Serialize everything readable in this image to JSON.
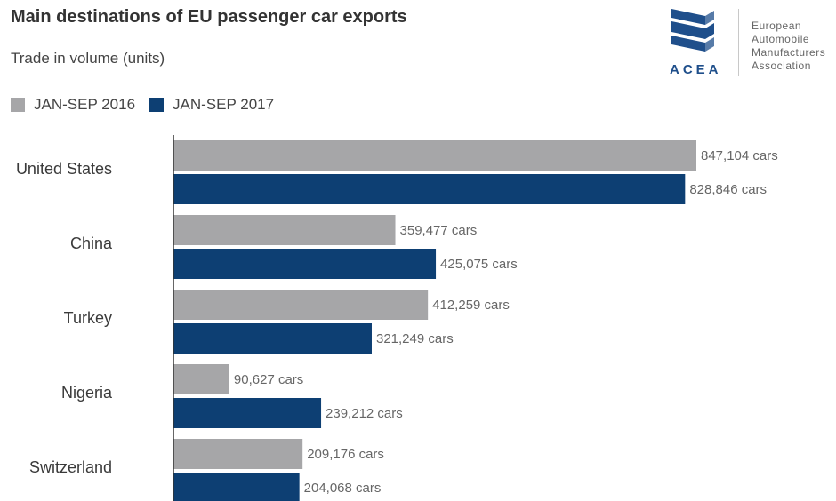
{
  "header": {
    "title": "Main destinations of EU passenger car exports",
    "subtitle": "Trade in volume (units)"
  },
  "logo": {
    "abbr": "ACEA",
    "lines": [
      "European",
      "Automobile",
      "Manufacturers",
      "Association"
    ]
  },
  "colors": {
    "series_2016": "#a6a6a8",
    "series_2017": "#0d3f73",
    "logo_blue": "#1f4f8b",
    "axis": "#333333"
  },
  "chart_data": {
    "type": "bar",
    "orientation": "horizontal",
    "categories": [
      "United States",
      "China",
      "Turkey",
      "Nigeria",
      "Switzerland"
    ],
    "series": [
      {
        "name": "JAN-SEP 2016",
        "values": [
          847104,
          359477,
          412259,
          90627,
          209176
        ]
      },
      {
        "name": "JAN-SEP 2017",
        "values": [
          828846,
          425075,
          321249,
          239212,
          204068
        ]
      }
    ],
    "value_suffix": " cars",
    "title": "Main destinations of EU passenger car exports",
    "subtitle": "Trade in volume (units)",
    "legend": "top-left",
    "grid": false
  }
}
